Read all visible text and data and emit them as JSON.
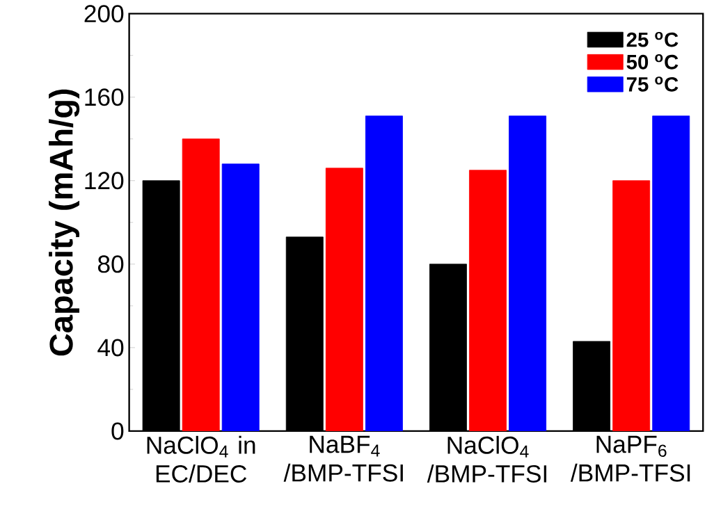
{
  "chart_data": {
    "type": "bar",
    "ylabel": "Capacity (mAh/g)",
    "categories": [
      "NaClO$_{4}$ in EC/DEC",
      "NaBF$_{4}$ /BMP-TFSI",
      "NaClO$_{4}$ /BMP-TFSI",
      "NaPF$_{6}$ /BMP-TFSI"
    ],
    "series": [
      {
        "name": "25 $^{o}$C",
        "color": "#000000",
        "values": [
          120,
          93,
          80,
          43
        ]
      },
      {
        "name": "50 $^{o}$C",
        "color": "#ff0000",
        "values": [
          140,
          126,
          125,
          120
        ]
      },
      {
        "name": "75 $^{o}$C",
        "color": "#0000ff",
        "values": [
          128,
          151,
          151,
          151
        ]
      }
    ],
    "ylim": [
      0,
      200
    ],
    "yticks": [
      0,
      40,
      80,
      120,
      160,
      200
    ],
    "legend": "top right",
    "grid": false
  }
}
